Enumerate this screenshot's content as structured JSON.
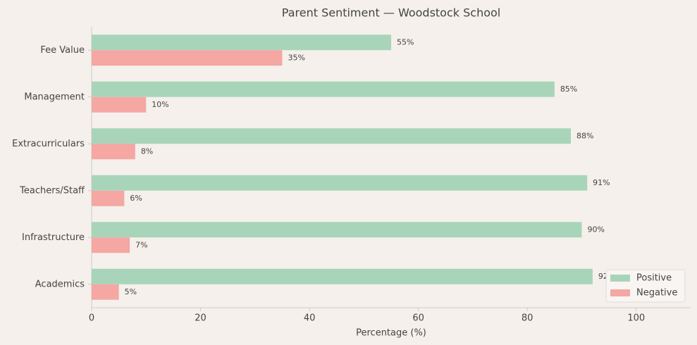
{
  "chart_data": {
    "type": "bar",
    "orientation": "horizontal",
    "title": "Parent Sentiment — Woodstock School",
    "x_label": "Percentage (%)",
    "categories": [
      "Fee Value",
      "Management",
      "Extracurriculars",
      "Teachers/Staff",
      "Infrastructure",
      "Academics"
    ],
    "series": [
      {
        "name": "Positive",
        "color": "#a8d5ba",
        "values": [
          55,
          85,
          88,
          91,
          90,
          92
        ],
        "value_labels": [
          "55%",
          "85%",
          "88%",
          "91%",
          "90%",
          "92%"
        ]
      },
      {
        "name": "Negative",
        "color": "#f4a7a3",
        "values": [
          35,
          10,
          8,
          6,
          7,
          5
        ],
        "value_labels": [
          "35%",
          "10%",
          "8%",
          "6%",
          "7%",
          "5%"
        ]
      }
    ],
    "xlim": [
      0,
      110
    ],
    "xticks": [
      0,
      20,
      40,
      60,
      80,
      100
    ],
    "legend": "lower right"
  }
}
